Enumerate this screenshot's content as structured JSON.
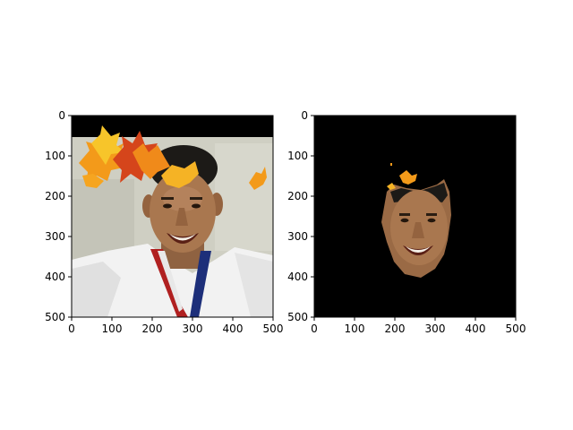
{
  "chart_data": [
    {
      "type": "image",
      "title": "",
      "xlabel": "",
      "ylabel": "",
      "xlim": [
        0,
        500
      ],
      "ylim": [
        500,
        0
      ],
      "xticks": [
        0,
        100,
        200,
        300,
        400,
        500
      ],
      "yticks": [
        0,
        100,
        200,
        300,
        400,
        500
      ],
      "xtick_labels": [
        "0",
        "100",
        "200",
        "300",
        "400",
        "500"
      ],
      "ytick_labels": [
        "0",
        "100",
        "200",
        "300",
        "400",
        "500"
      ],
      "image_content": "photo of a smiling man in a white jacket wearing a medal ribbon, with autumn maple-leaf overlay at top",
      "colors": {
        "top_band": "#000000",
        "background_wall": "#cfcfc3",
        "jacket": "#f2f2f2",
        "hair": "#1c1a17",
        "skin": "#a9774f",
        "leaf_orange": "#f39a1a",
        "leaf_red": "#d5451b",
        "leaf_yellow": "#f7c52a",
        "ribbon_red": "#b02020",
        "ribbon_blue": "#1d2f7a"
      }
    },
    {
      "type": "image",
      "title": "",
      "xlabel": "",
      "ylabel": "",
      "xlim": [
        0,
        500
      ],
      "ylim": [
        500,
        0
      ],
      "xticks": [
        0,
        100,
        200,
        300,
        400,
        500
      ],
      "yticks": [
        0,
        100,
        200,
        300,
        400,
        500
      ],
      "xtick_labels": [
        "0",
        "100",
        "200",
        "300",
        "400",
        "500"
      ],
      "ytick_labels": [
        "0",
        "100",
        "200",
        "300",
        "400",
        "500"
      ],
      "image_content": "segmentation mask showing only the face region (and leaf fragments) on a black background",
      "colors": {
        "background": "#000000",
        "skin": "#a9774f",
        "hair": "#1c1a17",
        "leaf_orange": "#f39a1a"
      }
    }
  ]
}
